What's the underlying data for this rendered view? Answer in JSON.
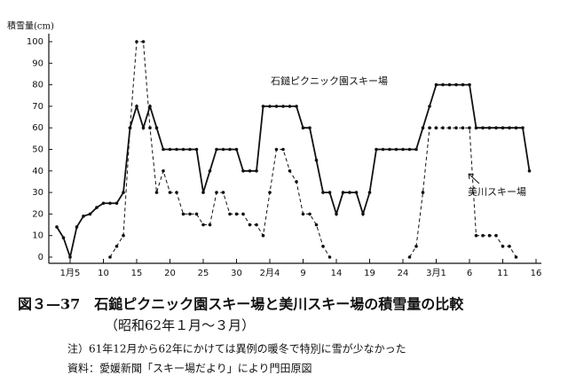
{
  "chart_data": {
    "type": "line",
    "y_label": "積雪量(cm)",
    "caption": "図３—37　石鎚ピクニック園スキー場と美川スキー場の積雪量の比較",
    "subcaption": "（昭和62年１月～３月）",
    "note": "注）61年12月から62年にかけては異例の暖冬で特別に雪が少なかった",
    "source": "資料：愛媛新聞「スキー場だより」により門田原図",
    "categories": [
      null,
      null,
      "1月5",
      null,
      null,
      null,
      null,
      "10",
      null,
      null,
      null,
      null,
      "15",
      null,
      null,
      null,
      null,
      "20",
      null,
      null,
      null,
      null,
      "25",
      null,
      null,
      null,
      null,
      "30",
      null,
      null,
      null,
      null,
      "2月4",
      null,
      null,
      null,
      null,
      "9",
      null,
      null,
      null,
      null,
      "14",
      null,
      null,
      null,
      null,
      "19",
      null,
      null,
      null,
      null,
      "24",
      null,
      null,
      null,
      null,
      "3月1",
      null,
      null,
      null,
      null,
      "6",
      null,
      null,
      null,
      null,
      "11",
      null,
      null,
      null,
      null,
      "16"
    ],
    "series": [
      {
        "name": "石鎚ピクニック園スキー場",
        "color": "#111111",
        "dashed": false,
        "values": [
          14,
          9,
          0,
          14,
          19,
          20,
          23,
          25,
          25,
          25,
          30,
          60,
          70,
          60,
          70,
          60,
          50,
          50,
          50,
          50,
          50,
          50,
          30,
          40,
          50,
          50,
          50,
          50,
          40,
          40,
          40,
          70,
          70,
          70,
          70,
          70,
          70,
          60,
          60,
          45,
          30,
          30,
          20,
          30,
          30,
          30,
          20,
          30,
          50,
          50,
          50,
          50,
          50,
          50,
          50,
          60,
          70,
          80,
          80,
          80,
          80,
          80,
          80,
          60,
          60,
          60,
          60,
          60,
          60,
          60,
          60,
          40,
          null
        ]
      },
      {
        "name": "美川スキー場",
        "color": "#111111",
        "dashed": true,
        "values": [
          null,
          null,
          null,
          null,
          null,
          null,
          null,
          null,
          0,
          5,
          10,
          60,
          100,
          100,
          60,
          30,
          40,
          30,
          30,
          20,
          20,
          20,
          15,
          15,
          30,
          30,
          20,
          20,
          20,
          15,
          15,
          10,
          30,
          50,
          50,
          40,
          35,
          20,
          20,
          15,
          5,
          0,
          null,
          null,
          null,
          null,
          null,
          null,
          null,
          null,
          null,
          null,
          null,
          0,
          5,
          30,
          60,
          60,
          60,
          60,
          60,
          60,
          60,
          10,
          10,
          10,
          10,
          5,
          5,
          0,
          null,
          null,
          null
        ]
      }
    ],
    "ylim": [
      0,
      100
    ],
    "yticks": [
      0,
      10,
      20,
      30,
      40,
      50,
      60,
      70,
      80,
      90,
      100
    ]
  }
}
